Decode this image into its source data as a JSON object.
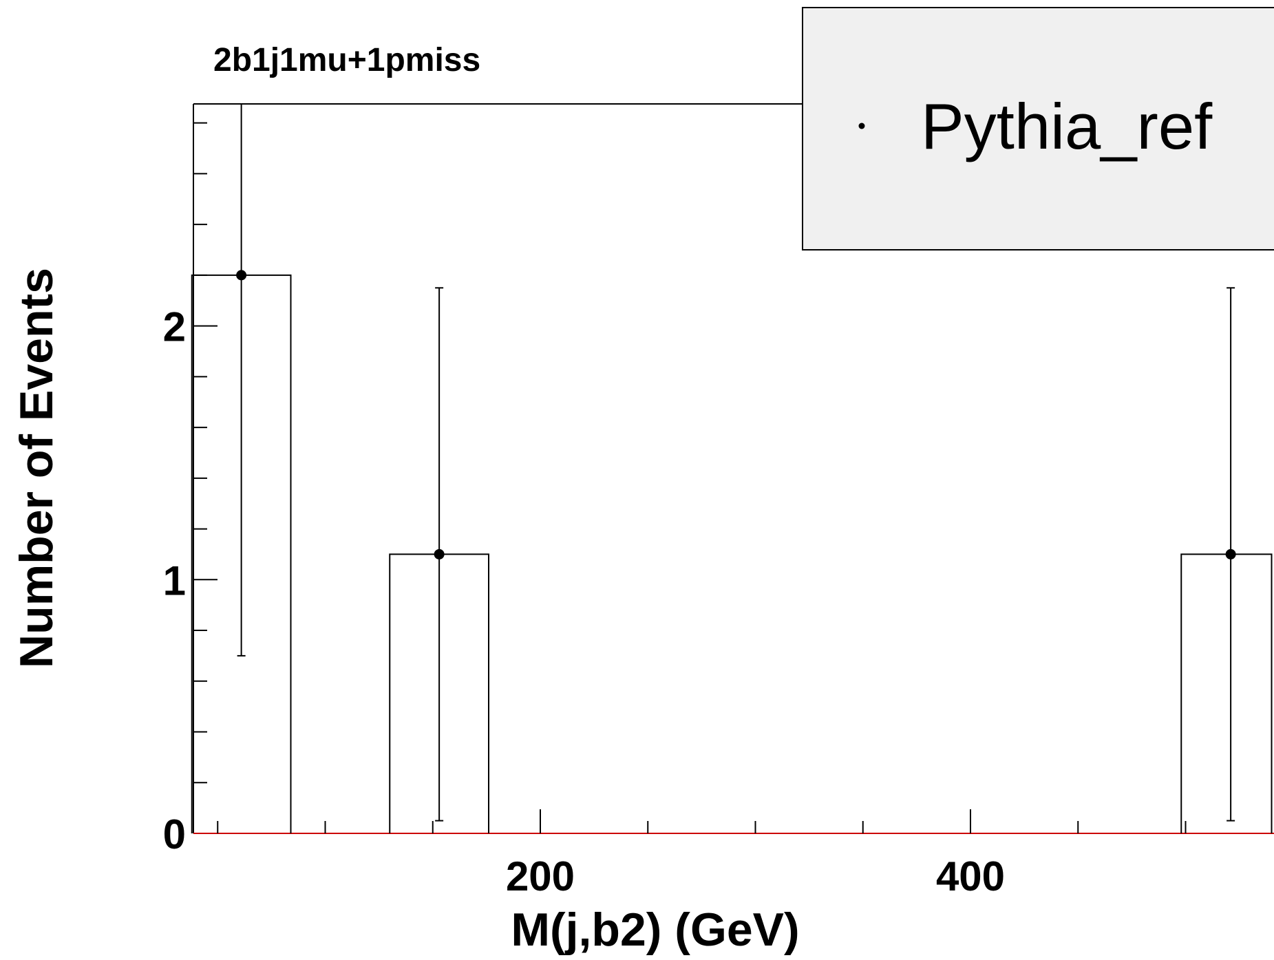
{
  "chart_data": {
    "type": "bar",
    "title": "2b1j1mu+1pmiss",
    "xlabel": "M(j,b2) (GeV)",
    "ylabel": "Number of Events",
    "xlim": [
      38,
      540
    ],
    "ylim": [
      0,
      2.875
    ],
    "x_ticks": [
      200,
      400
    ],
    "y_ticks": [
      0,
      1,
      2
    ],
    "bins": [
      {
        "x0": 38,
        "x1": 84,
        "center": 61,
        "value": 2.2,
        "err_lo": 0.7,
        "err_hi": 2.875
      },
      {
        "x0": 130,
        "x1": 176,
        "center": 153,
        "value": 1.1,
        "err_lo": 0.05,
        "err_hi": 2.15
      },
      {
        "x0": 498,
        "x1": 540,
        "center": 521,
        "value": 1.1,
        "err_lo": 0.05,
        "err_hi": 2.15
      }
    ],
    "series": [
      {
        "name": "Pythia_ref",
        "color": "#000000",
        "marker": "dot"
      }
    ],
    "legend": {
      "position": "top-right"
    },
    "baseline_color": "#cc0000",
    "legend_fill": "#f0f0f0"
  }
}
